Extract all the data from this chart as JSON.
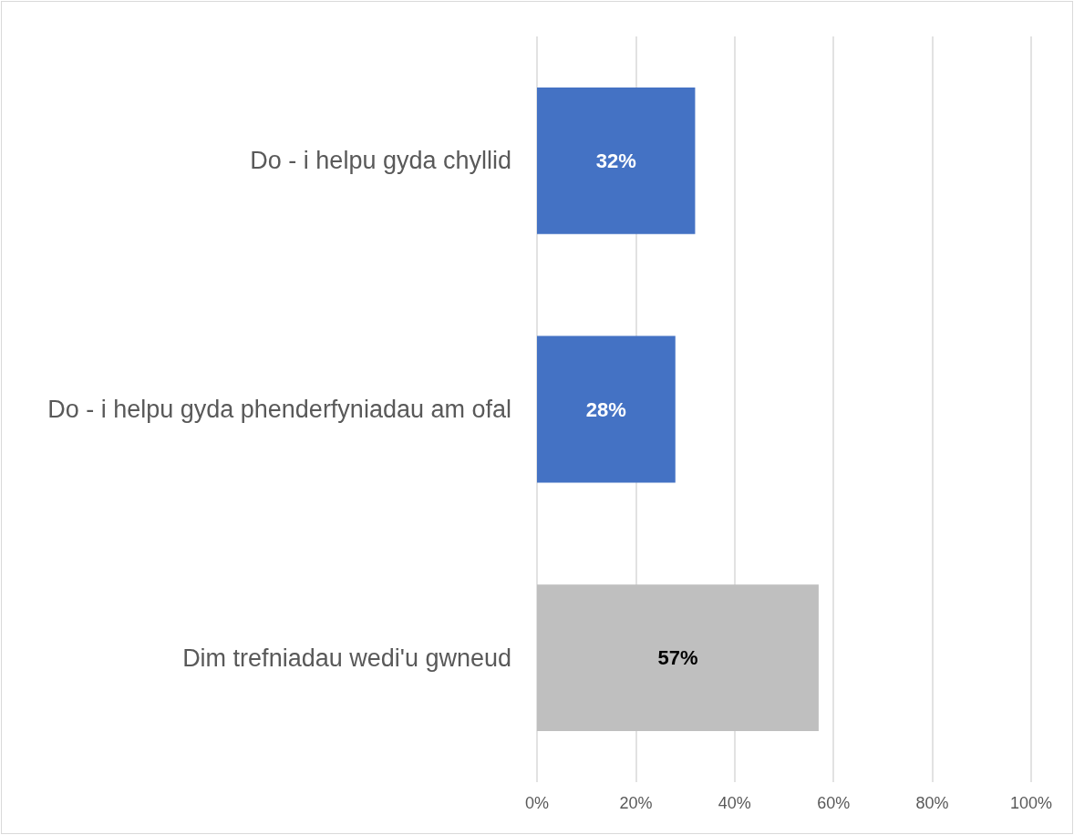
{
  "chart_data": {
    "type": "bar",
    "orientation": "horizontal",
    "categories": [
      "Do - i helpu gyda chyllid",
      "Do - i helpu gyda phenderfyniadau am ofal",
      "Dim trefniadau wedi'u gwneud"
    ],
    "values": [
      32,
      28,
      57
    ],
    "colors": [
      "#4472c4",
      "#4472c4",
      "#bfbfbf"
    ],
    "value_labels": [
      "32%",
      "28%",
      "57%"
    ],
    "xlim": [
      0,
      100
    ],
    "xticks": [
      {
        "value": 0,
        "label": "0%"
      },
      {
        "value": 20,
        "label": "20%"
      },
      {
        "value": 40,
        "label": "40%"
      },
      {
        "value": 60,
        "label": "60%"
      },
      {
        "value": 80,
        "label": "80%"
      },
      {
        "value": 100,
        "label": "100%"
      }
    ],
    "grid": "x"
  }
}
